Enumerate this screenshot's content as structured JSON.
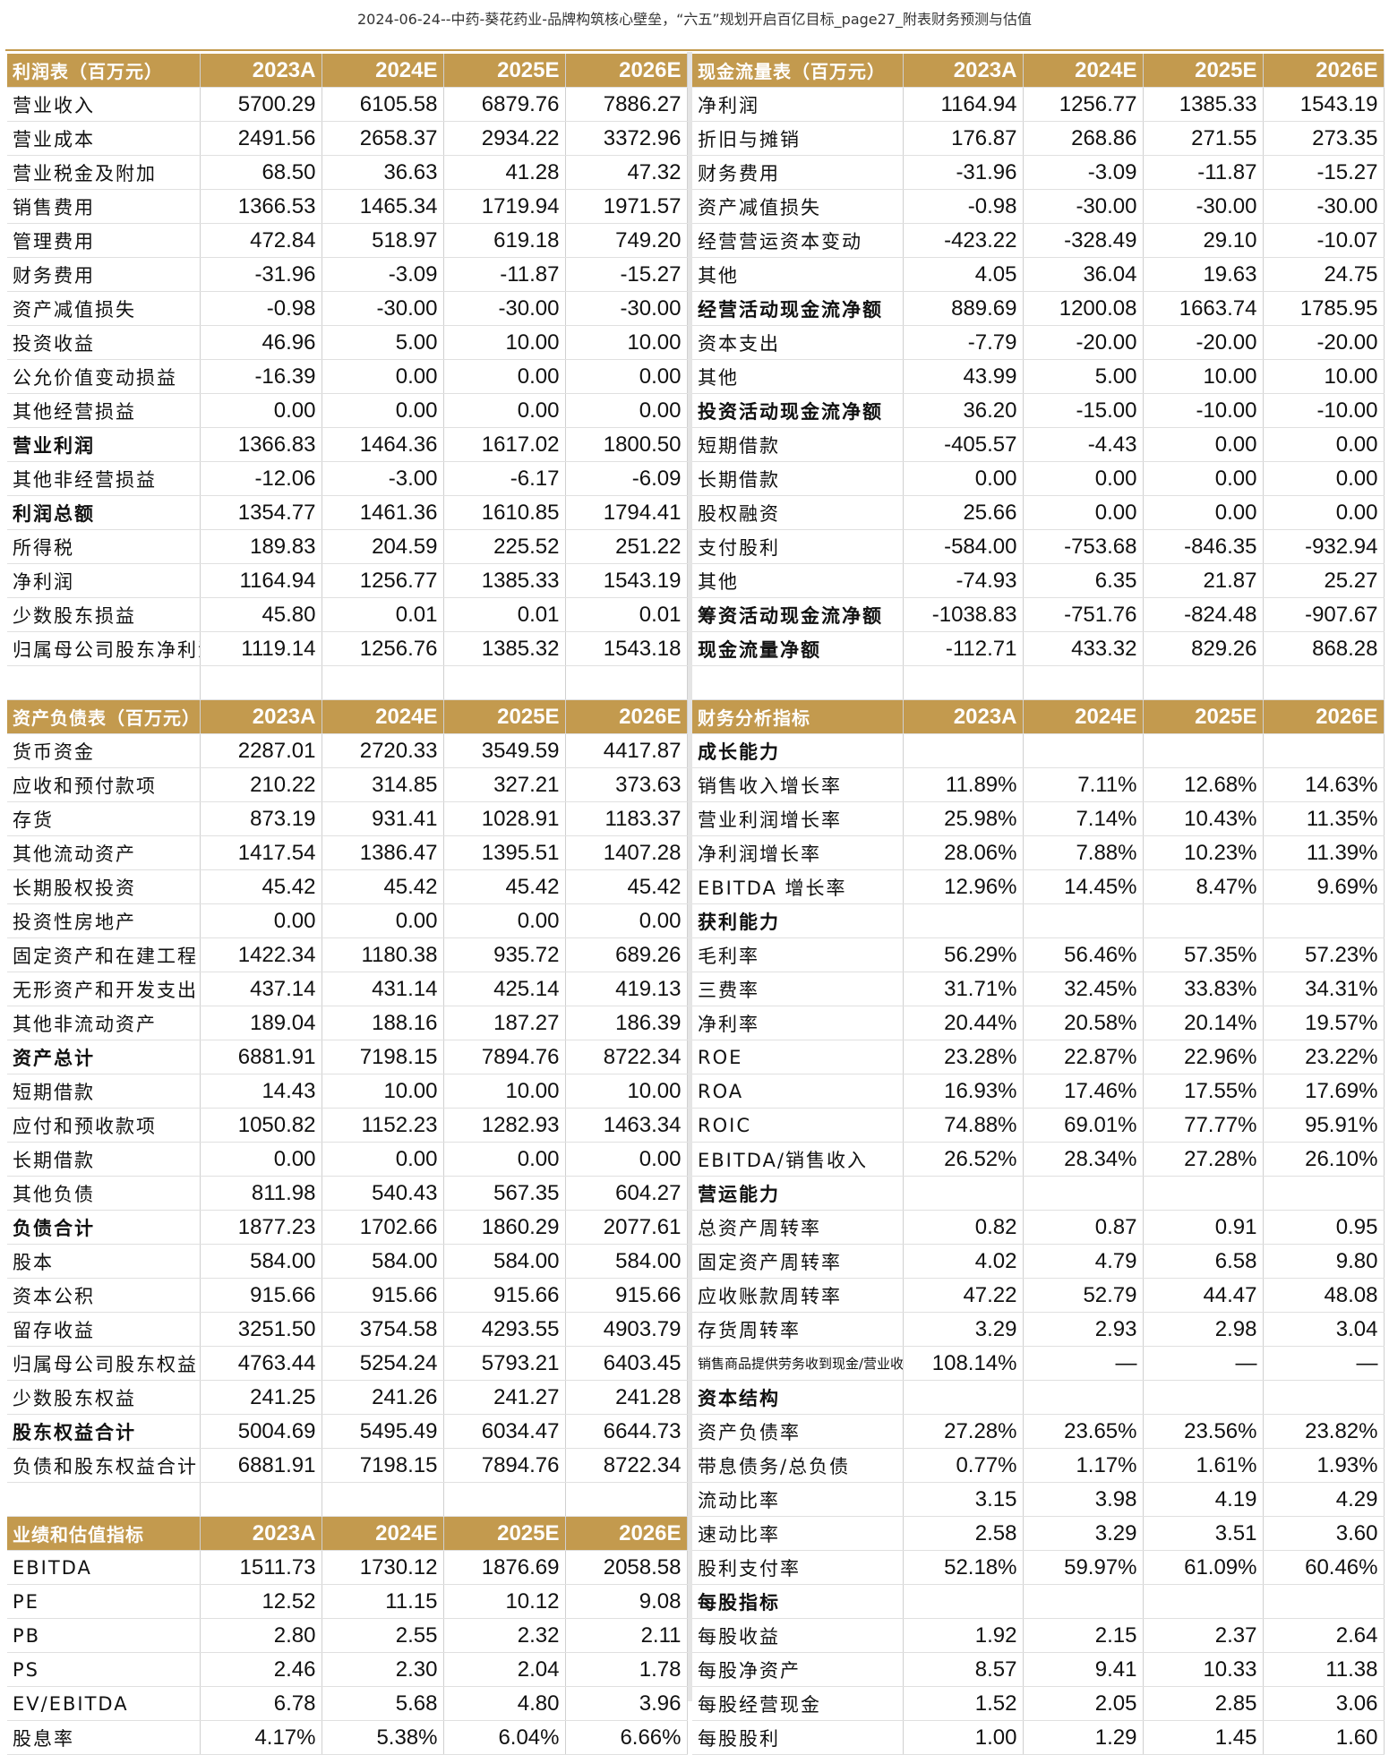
{
  "doc_title": "2024-06-24--中药-葵花药业-品牌构筑核心壁垒，“六五”规划开启百亿目标_page27_附表财务预测与估值",
  "years": [
    "2023A",
    "2024E",
    "2025E",
    "2026E"
  ],
  "income": {
    "header": "利润表（百万元）",
    "rows": [
      {
        "label": "营业收入",
        "v": [
          "5700.29",
          "6105.58",
          "6879.76",
          "7886.27"
        ]
      },
      {
        "label": "营业成本",
        "v": [
          "2491.56",
          "2658.37",
          "2934.22",
          "3372.96"
        ]
      },
      {
        "label": "营业税金及附加",
        "v": [
          "68.50",
          "36.63",
          "41.28",
          "47.32"
        ]
      },
      {
        "label": "销售费用",
        "v": [
          "1366.53",
          "1465.34",
          "1719.94",
          "1971.57"
        ]
      },
      {
        "label": "管理费用",
        "v": [
          "472.84",
          "518.97",
          "619.18",
          "749.20"
        ]
      },
      {
        "label": "财务费用",
        "v": [
          "-31.96",
          "-3.09",
          "-11.87",
          "-15.27"
        ]
      },
      {
        "label": "资产减值损失",
        "v": [
          "-0.98",
          "-30.00",
          "-30.00",
          "-30.00"
        ]
      },
      {
        "label": "投资收益",
        "v": [
          "46.96",
          "5.00",
          "10.00",
          "10.00"
        ]
      },
      {
        "label": "公允价值变动损益",
        "v": [
          "-16.39",
          "0.00",
          "0.00",
          "0.00"
        ]
      },
      {
        "label": "其他经营损益",
        "v": [
          "0.00",
          "0.00",
          "0.00",
          "0.00"
        ]
      },
      {
        "label": "营业利润",
        "v": [
          "1366.83",
          "1464.36",
          "1617.02",
          "1800.50"
        ],
        "bold": true
      },
      {
        "label": "其他非经营损益",
        "v": [
          "-12.06",
          "-3.00",
          "-6.17",
          "-6.09"
        ]
      },
      {
        "label": "利润总额",
        "v": [
          "1354.77",
          "1461.36",
          "1610.85",
          "1794.41"
        ],
        "bold": true
      },
      {
        "label": "所得税",
        "v": [
          "189.83",
          "204.59",
          "225.52",
          "251.22"
        ]
      },
      {
        "label": "净利润",
        "v": [
          "1164.94",
          "1256.77",
          "1385.33",
          "1543.19"
        ]
      },
      {
        "label": "少数股东损益",
        "v": [
          "45.80",
          "0.01",
          "0.01",
          "0.01"
        ]
      },
      {
        "label": "归属母公司股东净利润",
        "v": [
          "1119.14",
          "1256.76",
          "1385.32",
          "1543.18"
        ]
      }
    ]
  },
  "balance": {
    "header": "资产负债表（百万元）",
    "rows": [
      {
        "label": "货币资金",
        "v": [
          "2287.01",
          "2720.33",
          "3549.59",
          "4417.87"
        ]
      },
      {
        "label": "应收和预付款项",
        "v": [
          "210.22",
          "314.85",
          "327.21",
          "373.63"
        ]
      },
      {
        "label": "存货",
        "v": [
          "873.19",
          "931.41",
          "1028.91",
          "1183.37"
        ]
      },
      {
        "label": "其他流动资产",
        "v": [
          "1417.54",
          "1386.47",
          "1395.51",
          "1407.28"
        ]
      },
      {
        "label": "长期股权投资",
        "v": [
          "45.42",
          "45.42",
          "45.42",
          "45.42"
        ]
      },
      {
        "label": "投资性房地产",
        "v": [
          "0.00",
          "0.00",
          "0.00",
          "0.00"
        ]
      },
      {
        "label": "固定资产和在建工程",
        "v": [
          "1422.34",
          "1180.38",
          "935.72",
          "689.26"
        ]
      },
      {
        "label": "无形资产和开发支出",
        "v": [
          "437.14",
          "431.14",
          "425.14",
          "419.13"
        ]
      },
      {
        "label": "其他非流动资产",
        "v": [
          "189.04",
          "188.16",
          "187.27",
          "186.39"
        ]
      },
      {
        "label": "资产总计",
        "v": [
          "6881.91",
          "7198.15",
          "7894.76",
          "8722.34"
        ],
        "bold": true
      },
      {
        "label": "短期借款",
        "v": [
          "14.43",
          "10.00",
          "10.00",
          "10.00"
        ]
      },
      {
        "label": "应付和预收款项",
        "v": [
          "1050.82",
          "1152.23",
          "1282.93",
          "1463.34"
        ]
      },
      {
        "label": "长期借款",
        "v": [
          "0.00",
          "0.00",
          "0.00",
          "0.00"
        ]
      },
      {
        "label": "其他负债",
        "v": [
          "811.98",
          "540.43",
          "567.35",
          "604.27"
        ]
      },
      {
        "label": "负债合计",
        "v": [
          "1877.23",
          "1702.66",
          "1860.29",
          "2077.61"
        ],
        "bold": true
      },
      {
        "label": "股本",
        "v": [
          "584.00",
          "584.00",
          "584.00",
          "584.00"
        ]
      },
      {
        "label": "资本公积",
        "v": [
          "915.66",
          "915.66",
          "915.66",
          "915.66"
        ]
      },
      {
        "label": "留存收益",
        "v": [
          "3251.50",
          "3754.58",
          "4293.55",
          "4903.79"
        ]
      },
      {
        "label": "归属母公司股东权益",
        "v": [
          "4763.44",
          "5254.24",
          "5793.21",
          "6403.45"
        ]
      },
      {
        "label": "少数股东权益",
        "v": [
          "241.25",
          "241.26",
          "241.27",
          "241.28"
        ]
      },
      {
        "label": "股东权益合计",
        "v": [
          "5004.69",
          "5495.49",
          "6034.47",
          "6644.73"
        ],
        "bold": true
      },
      {
        "label": "负债和股东权益合计",
        "v": [
          "6881.91",
          "7198.15",
          "7894.76",
          "8722.34"
        ]
      }
    ]
  },
  "valuation": {
    "header": "业绩和估值指标",
    "rows": [
      {
        "label": "EBITDA",
        "v": [
          "1511.73",
          "1730.12",
          "1876.69",
          "2058.58"
        ]
      },
      {
        "label": "PE",
        "v": [
          "12.52",
          "11.15",
          "10.12",
          "9.08"
        ]
      },
      {
        "label": "PB",
        "v": [
          "2.80",
          "2.55",
          "2.32",
          "2.11"
        ]
      },
      {
        "label": "PS",
        "v": [
          "2.46",
          "2.30",
          "2.04",
          "1.78"
        ]
      },
      {
        "label": "EV/EBITDA",
        "v": [
          "6.78",
          "5.68",
          "4.80",
          "3.96"
        ]
      },
      {
        "label": "股息率",
        "v": [
          "4.17%",
          "5.38%",
          "6.04%",
          "6.66%"
        ]
      }
    ]
  },
  "cashflow": {
    "header": "现金流量表（百万元）",
    "rows": [
      {
        "label": "净利润",
        "v": [
          "1164.94",
          "1256.77",
          "1385.33",
          "1543.19"
        ]
      },
      {
        "label": "折旧与摊销",
        "v": [
          "176.87",
          "268.86",
          "271.55",
          "273.35"
        ]
      },
      {
        "label": "财务费用",
        "v": [
          "-31.96",
          "-3.09",
          "-11.87",
          "-15.27"
        ]
      },
      {
        "label": "资产减值损失",
        "v": [
          "-0.98",
          "-30.00",
          "-30.00",
          "-30.00"
        ]
      },
      {
        "label": "经营营运资本变动",
        "v": [
          "-423.22",
          "-328.49",
          "29.10",
          "-10.07"
        ]
      },
      {
        "label": "其他",
        "v": [
          "4.05",
          "36.04",
          "19.63",
          "24.75"
        ]
      },
      {
        "label": "经营活动现金流净额",
        "v": [
          "889.69",
          "1200.08",
          "1663.74",
          "1785.95"
        ],
        "bold": true
      },
      {
        "label": "资本支出",
        "v": [
          "-7.79",
          "-20.00",
          "-20.00",
          "-20.00"
        ]
      },
      {
        "label": "其他",
        "v": [
          "43.99",
          "5.00",
          "10.00",
          "10.00"
        ]
      },
      {
        "label": "投资活动现金流净额",
        "v": [
          "36.20",
          "-15.00",
          "-10.00",
          "-10.00"
        ],
        "bold": true
      },
      {
        "label": "短期借款",
        "v": [
          "-405.57",
          "-4.43",
          "0.00",
          "0.00"
        ]
      },
      {
        "label": "长期借款",
        "v": [
          "0.00",
          "0.00",
          "0.00",
          "0.00"
        ]
      },
      {
        "label": "股权融资",
        "v": [
          "25.66",
          "0.00",
          "0.00",
          "0.00"
        ]
      },
      {
        "label": "支付股利",
        "v": [
          "-584.00",
          "-753.68",
          "-846.35",
          "-932.94"
        ]
      },
      {
        "label": "其他",
        "v": [
          "-74.93",
          "6.35",
          "21.87",
          "25.27"
        ]
      },
      {
        "label": "筹资活动现金流净额",
        "v": [
          "-1038.83",
          "-751.76",
          "-824.48",
          "-907.67"
        ],
        "bold": true
      },
      {
        "label": "现金流量净额",
        "v": [
          "-112.71",
          "433.32",
          "829.26",
          "868.28"
        ],
        "bold": true
      }
    ]
  },
  "ratios": {
    "header": "财务分析指标",
    "rows": [
      {
        "label": "成长能力",
        "section": true
      },
      {
        "label": "销售收入增长率",
        "v": [
          "11.89%",
          "7.11%",
          "12.68%",
          "14.63%"
        ]
      },
      {
        "label": "营业利润增长率",
        "v": [
          "25.98%",
          "7.14%",
          "10.43%",
          "11.35%"
        ]
      },
      {
        "label": "净利润增长率",
        "v": [
          "28.06%",
          "7.88%",
          "10.23%",
          "11.39%"
        ]
      },
      {
        "label": "EBITDA 增长率",
        "v": [
          "12.96%",
          "14.45%",
          "8.47%",
          "9.69%"
        ]
      },
      {
        "label": "获利能力",
        "section": true
      },
      {
        "label": "毛利率",
        "v": [
          "56.29%",
          "56.46%",
          "57.35%",
          "57.23%"
        ]
      },
      {
        "label": "三费率",
        "v": [
          "31.71%",
          "32.45%",
          "33.83%",
          "34.31%"
        ]
      },
      {
        "label": "净利率",
        "v": [
          "20.44%",
          "20.58%",
          "20.14%",
          "19.57%"
        ]
      },
      {
        "label": "ROE",
        "v": [
          "23.28%",
          "22.87%",
          "22.96%",
          "23.22%"
        ]
      },
      {
        "label": "ROA",
        "v": [
          "16.93%",
          "17.46%",
          "17.55%",
          "17.69%"
        ]
      },
      {
        "label": "ROIC",
        "v": [
          "74.88%",
          "69.01%",
          "77.77%",
          "95.91%"
        ]
      },
      {
        "label": "EBITDA/销售收入",
        "v": [
          "26.52%",
          "28.34%",
          "27.28%",
          "26.10%"
        ]
      },
      {
        "label": "营运能力",
        "section": true
      },
      {
        "label": "总资产周转率",
        "v": [
          "0.82",
          "0.87",
          "0.91",
          "0.95"
        ]
      },
      {
        "label": "固定资产周转率",
        "v": [
          "4.02",
          "4.79",
          "6.58",
          "9.80"
        ]
      },
      {
        "label": "应收账款周转率",
        "v": [
          "47.22",
          "52.79",
          "44.47",
          "48.08"
        ]
      },
      {
        "label": "存货周转率",
        "v": [
          "3.29",
          "2.93",
          "2.98",
          "3.04"
        ]
      },
      {
        "label": "销售商品提供劳务收到现金/营业收入",
        "v": [
          "108.14%",
          "—",
          "—",
          "—"
        ],
        "small": true
      },
      {
        "label": "资本结构",
        "section": true
      },
      {
        "label": "资产负债率",
        "v": [
          "27.28%",
          "23.65%",
          "23.56%",
          "23.82%"
        ]
      },
      {
        "label": "带息债务/总负债",
        "v": [
          "0.77%",
          "1.17%",
          "1.61%",
          "1.93%"
        ]
      },
      {
        "label": "流动比率",
        "v": [
          "3.15",
          "3.98",
          "4.19",
          "4.29"
        ]
      },
      {
        "label": "速动比率",
        "v": [
          "2.58",
          "3.29",
          "3.51",
          "3.60"
        ]
      },
      {
        "label": "股利支付率",
        "v": [
          "52.18%",
          "59.97%",
          "61.09%",
          "60.46%"
        ]
      },
      {
        "label": "每股指标",
        "section": true
      },
      {
        "label": "每股收益",
        "v": [
          "1.92",
          "2.15",
          "2.37",
          "2.64"
        ]
      },
      {
        "label": "每股净资产",
        "v": [
          "8.57",
          "9.41",
          "10.33",
          "11.38"
        ]
      },
      {
        "label": "每股经营现金",
        "v": [
          "1.52",
          "2.05",
          "2.85",
          "3.06"
        ]
      },
      {
        "label": "每股股利",
        "v": [
          "1.00",
          "1.29",
          "1.45",
          "1.60"
        ]
      }
    ]
  },
  "colors": {
    "header_bg": "#c39a4e",
    "header_text": "#ffffff"
  }
}
